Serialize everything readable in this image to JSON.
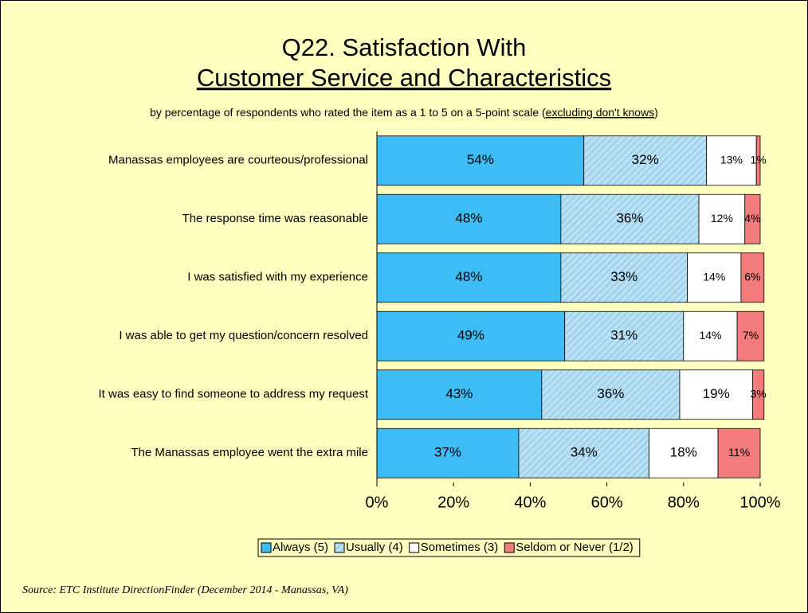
{
  "chart_data": {
    "type": "stacked_barh",
    "title": [
      "Q22. Satisfaction With",
      "Customer Service and Characteristics"
    ],
    "subtitle": [
      "by percentage of respondents who rated the item as a 1 to 5 on a 5-point scale (",
      "excluding don't knows",
      ")"
    ],
    "categories": [
      "Manassas employees are courteous/professional",
      "The response time was reasonable",
      "I was satisfied with my experience",
      "I was able to get my question/concern resolved",
      "It was easy to find someone to address my request",
      "The Manassas employee went the extra mile"
    ],
    "series": [
      {
        "name": "Always (5)",
        "color": "#3dbcf5",
        "values": [
          54,
          48,
          48,
          49,
          43,
          37
        ],
        "value_labels": [
          "54%",
          "48%",
          "48%",
          "49%",
          "43%",
          "37%"
        ]
      },
      {
        "name": "Usually (4)",
        "color": "#b8e0f5",
        "pattern": "hatch",
        "values": [
          32,
          36,
          33,
          31,
          36,
          34
        ],
        "value_labels": [
          "32%",
          "36%",
          "33%",
          "31%",
          "36%",
          "34%"
        ]
      },
      {
        "name": "Sometimes (3)",
        "color": "#ffffff",
        "values": [
          13,
          12,
          14,
          14,
          19,
          18
        ],
        "value_labels": [
          "13%",
          "12%",
          "14%",
          "14%",
          "19%",
          "18%"
        ]
      },
      {
        "name": "Seldom or Never (1/2)",
        "color": "#f27b7b",
        "values": [
          1,
          4,
          6,
          7,
          3,
          11
        ],
        "value_labels": [
          "1%",
          "4%",
          "6%",
          "7%",
          "3%",
          "11%"
        ]
      }
    ],
    "xlim": [
      0,
      100
    ],
    "xticks": [
      {
        "value": 0,
        "label": "0%"
      },
      {
        "value": 20,
        "label": "20%"
      },
      {
        "value": 40,
        "label": "40%"
      },
      {
        "value": 60,
        "label": "60%"
      },
      {
        "value": 80,
        "label": "80%"
      },
      {
        "value": 100,
        "label": "100%"
      }
    ],
    "legend": "bottom",
    "source": "Source:  ETC Institute DirectionFinder (December 2014 - Manassas, VA)"
  }
}
